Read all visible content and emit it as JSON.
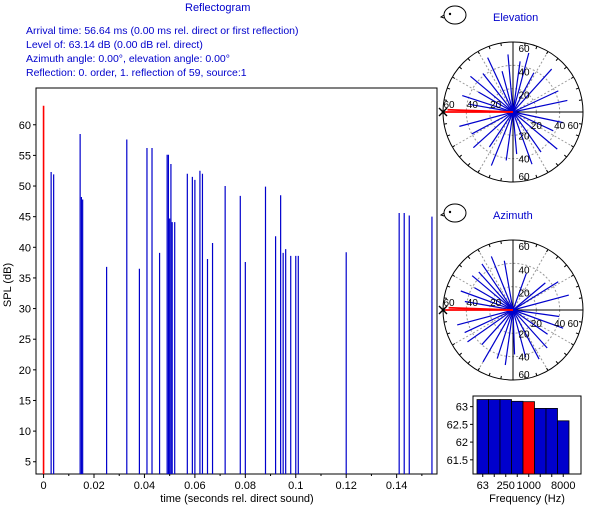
{
  "header": {
    "title": "Reflectogram",
    "arrival_time": "Arrival time: 56.64 ms (0.00 ms rel. direct or first reflection)",
    "level": "Level of: 63.14 dB (0.00 dB rel. direct)",
    "angles": "Azimuth angle: 0.00°, elevation angle: 0.00°",
    "reflection": "Reflection: 0. order, 1. reflection of 59, source:1"
  },
  "colors": {
    "bar": "#0000cc",
    "highlight": "#ff0000",
    "text": "#0000cc",
    "grid": "#999999",
    "axis": "#000000"
  },
  "chart_data": [
    {
      "type": "bar",
      "title": "Reflectogram",
      "xlabel": "time (seconds rel. direct sound)",
      "ylabel": "SPL (dB)",
      "xlim": [
        -0.003,
        0.156
      ],
      "ylim": [
        3,
        66
      ],
      "xticks": [
        0,
        0.02,
        0.04,
        0.06,
        0.08,
        0.1,
        0.12,
        0.14
      ],
      "xtick_labels": [
        "0",
        "0.02",
        "0.04",
        "0.06",
        "0.08",
        "0.1",
        "0.12",
        "0.14"
      ],
      "yticks": [
        5,
        10,
        15,
        20,
        25,
        30,
        35,
        40,
        45,
        50,
        55,
        60
      ],
      "highlight": {
        "x": 0,
        "y": 63.1
      },
      "x": [
        0.003,
        0.004,
        0.0145,
        0.015,
        0.0155,
        0.025,
        0.033,
        0.038,
        0.041,
        0.043,
        0.046,
        0.049,
        0.0495,
        0.05,
        0.0505,
        0.051,
        0.052,
        0.057,
        0.059,
        0.06,
        0.062,
        0.063,
        0.065,
        0.067,
        0.072,
        0.078,
        0.08,
        0.088,
        0.092,
        0.094,
        0.095,
        0.096,
        0.098,
        0.1,
        0.101,
        0.12,
        0.141,
        0.143,
        0.145,
        0.154
      ],
      "y": [
        52.3,
        51.9,
        58.5,
        48.2,
        47.8,
        36.8,
        57.6,
        36.5,
        56.2,
        56.2,
        39.1,
        55.1,
        55.1,
        44.7,
        53.6,
        44.1,
        44.1,
        52.0,
        51.5,
        51.0,
        52.5,
        52.0,
        38.1,
        40.7,
        50.0,
        48.4,
        37.6,
        49.9,
        41.8,
        48.5,
        39.1,
        39.7,
        38.6,
        38.6,
        38.6,
        39.2,
        45.6,
        45.6,
        45.2,
        45.0
      ]
    },
    {
      "type": "scatter",
      "title": "Elevation",
      "polar": true,
      "radial_ticks": [
        20,
        40,
        60
      ],
      "tick_labels": [
        "60",
        "40",
        "20",
        "20",
        "40",
        "60"
      ],
      "rays": [
        {
          "angle_deg": 180,
          "length": 61,
          "highlight": true
        },
        {
          "angle_deg": 178,
          "length": 59,
          "highlight": true
        },
        {
          "angle_deg": 12,
          "length": 50
        },
        {
          "angle_deg": 25,
          "length": 45
        },
        {
          "angle_deg": 48,
          "length": 52
        },
        {
          "angle_deg": 62,
          "length": 40
        },
        {
          "angle_deg": 75,
          "length": 55
        },
        {
          "angle_deg": 82,
          "length": 46
        },
        {
          "angle_deg": 95,
          "length": 52
        },
        {
          "angle_deg": 105,
          "length": 38
        },
        {
          "angle_deg": 115,
          "length": 54
        },
        {
          "angle_deg": 128,
          "length": 44
        },
        {
          "angle_deg": 140,
          "length": 50
        },
        {
          "angle_deg": 150,
          "length": 36
        },
        {
          "angle_deg": 162,
          "length": 48
        },
        {
          "angle_deg": 170,
          "length": 40
        },
        {
          "angle_deg": 195,
          "length": 50
        },
        {
          "angle_deg": 208,
          "length": 42
        },
        {
          "angle_deg": 222,
          "length": 48
        },
        {
          "angle_deg": 236,
          "length": 38
        },
        {
          "angle_deg": 248,
          "length": 52
        },
        {
          "angle_deg": 262,
          "length": 44
        },
        {
          "angle_deg": 275,
          "length": 38
        },
        {
          "angle_deg": 290,
          "length": 50
        },
        {
          "angle_deg": 305,
          "length": 44
        },
        {
          "angle_deg": 320,
          "length": 52
        },
        {
          "angle_deg": 335,
          "length": 40
        },
        {
          "angle_deg": 348,
          "length": 46
        }
      ]
    },
    {
      "type": "scatter",
      "title": "Azimuth",
      "polar": true,
      "radial_ticks": [
        20,
        40,
        60
      ],
      "tick_labels": [
        "60",
        "40",
        "20",
        "20",
        "40",
        "60"
      ],
      "rays": [
        {
          "angle_deg": 180,
          "length": 61,
          "highlight": true
        },
        {
          "angle_deg": 178,
          "length": 58,
          "highlight": true
        },
        {
          "angle_deg": 15,
          "length": 52
        },
        {
          "angle_deg": 32,
          "length": 48
        },
        {
          "angle_deg": 40,
          "length": 38
        },
        {
          "angle_deg": 70,
          "length": 35
        },
        {
          "angle_deg": 100,
          "length": 45
        },
        {
          "angle_deg": 112,
          "length": 52
        },
        {
          "angle_deg": 124,
          "length": 50
        },
        {
          "angle_deg": 132,
          "length": 46
        },
        {
          "angle_deg": 140,
          "length": 48
        },
        {
          "angle_deg": 150,
          "length": 40
        },
        {
          "angle_deg": 160,
          "length": 50
        },
        {
          "angle_deg": 170,
          "length": 44
        },
        {
          "angle_deg": 195,
          "length": 52
        },
        {
          "angle_deg": 205,
          "length": 48
        },
        {
          "angle_deg": 215,
          "length": 50
        },
        {
          "angle_deg": 228,
          "length": 42
        },
        {
          "angle_deg": 240,
          "length": 54
        },
        {
          "angle_deg": 252,
          "length": 46
        },
        {
          "angle_deg": 262,
          "length": 50
        },
        {
          "angle_deg": 272,
          "length": 40
        },
        {
          "angle_deg": 285,
          "length": 44
        },
        {
          "angle_deg": 298,
          "length": 50
        },
        {
          "angle_deg": 312,
          "length": 46
        },
        {
          "angle_deg": 325,
          "length": 38
        },
        {
          "angle_deg": 340,
          "length": 48
        },
        {
          "angle_deg": 352,
          "length": 42
        }
      ]
    },
    {
      "type": "bar",
      "title": "",
      "xlabel": "Frequency (Hz)",
      "ylabel": "",
      "categories": [
        "63",
        "125",
        "250",
        "500",
        "1000",
        "2000",
        "4000",
        "8000"
      ],
      "category_labels": [
        "63",
        "250",
        "1000",
        "8000"
      ],
      "values": [
        63.2,
        63.2,
        63.2,
        63.15,
        63.14,
        62.95,
        62.95,
        62.6
      ],
      "highlight_index": 4,
      "ylim": [
        61.1,
        63.3
      ],
      "yticks": [
        61.5,
        62,
        62.5,
        63
      ],
      "ytick_labels": [
        "61.5",
        "62",
        "62.5",
        "63"
      ]
    }
  ]
}
